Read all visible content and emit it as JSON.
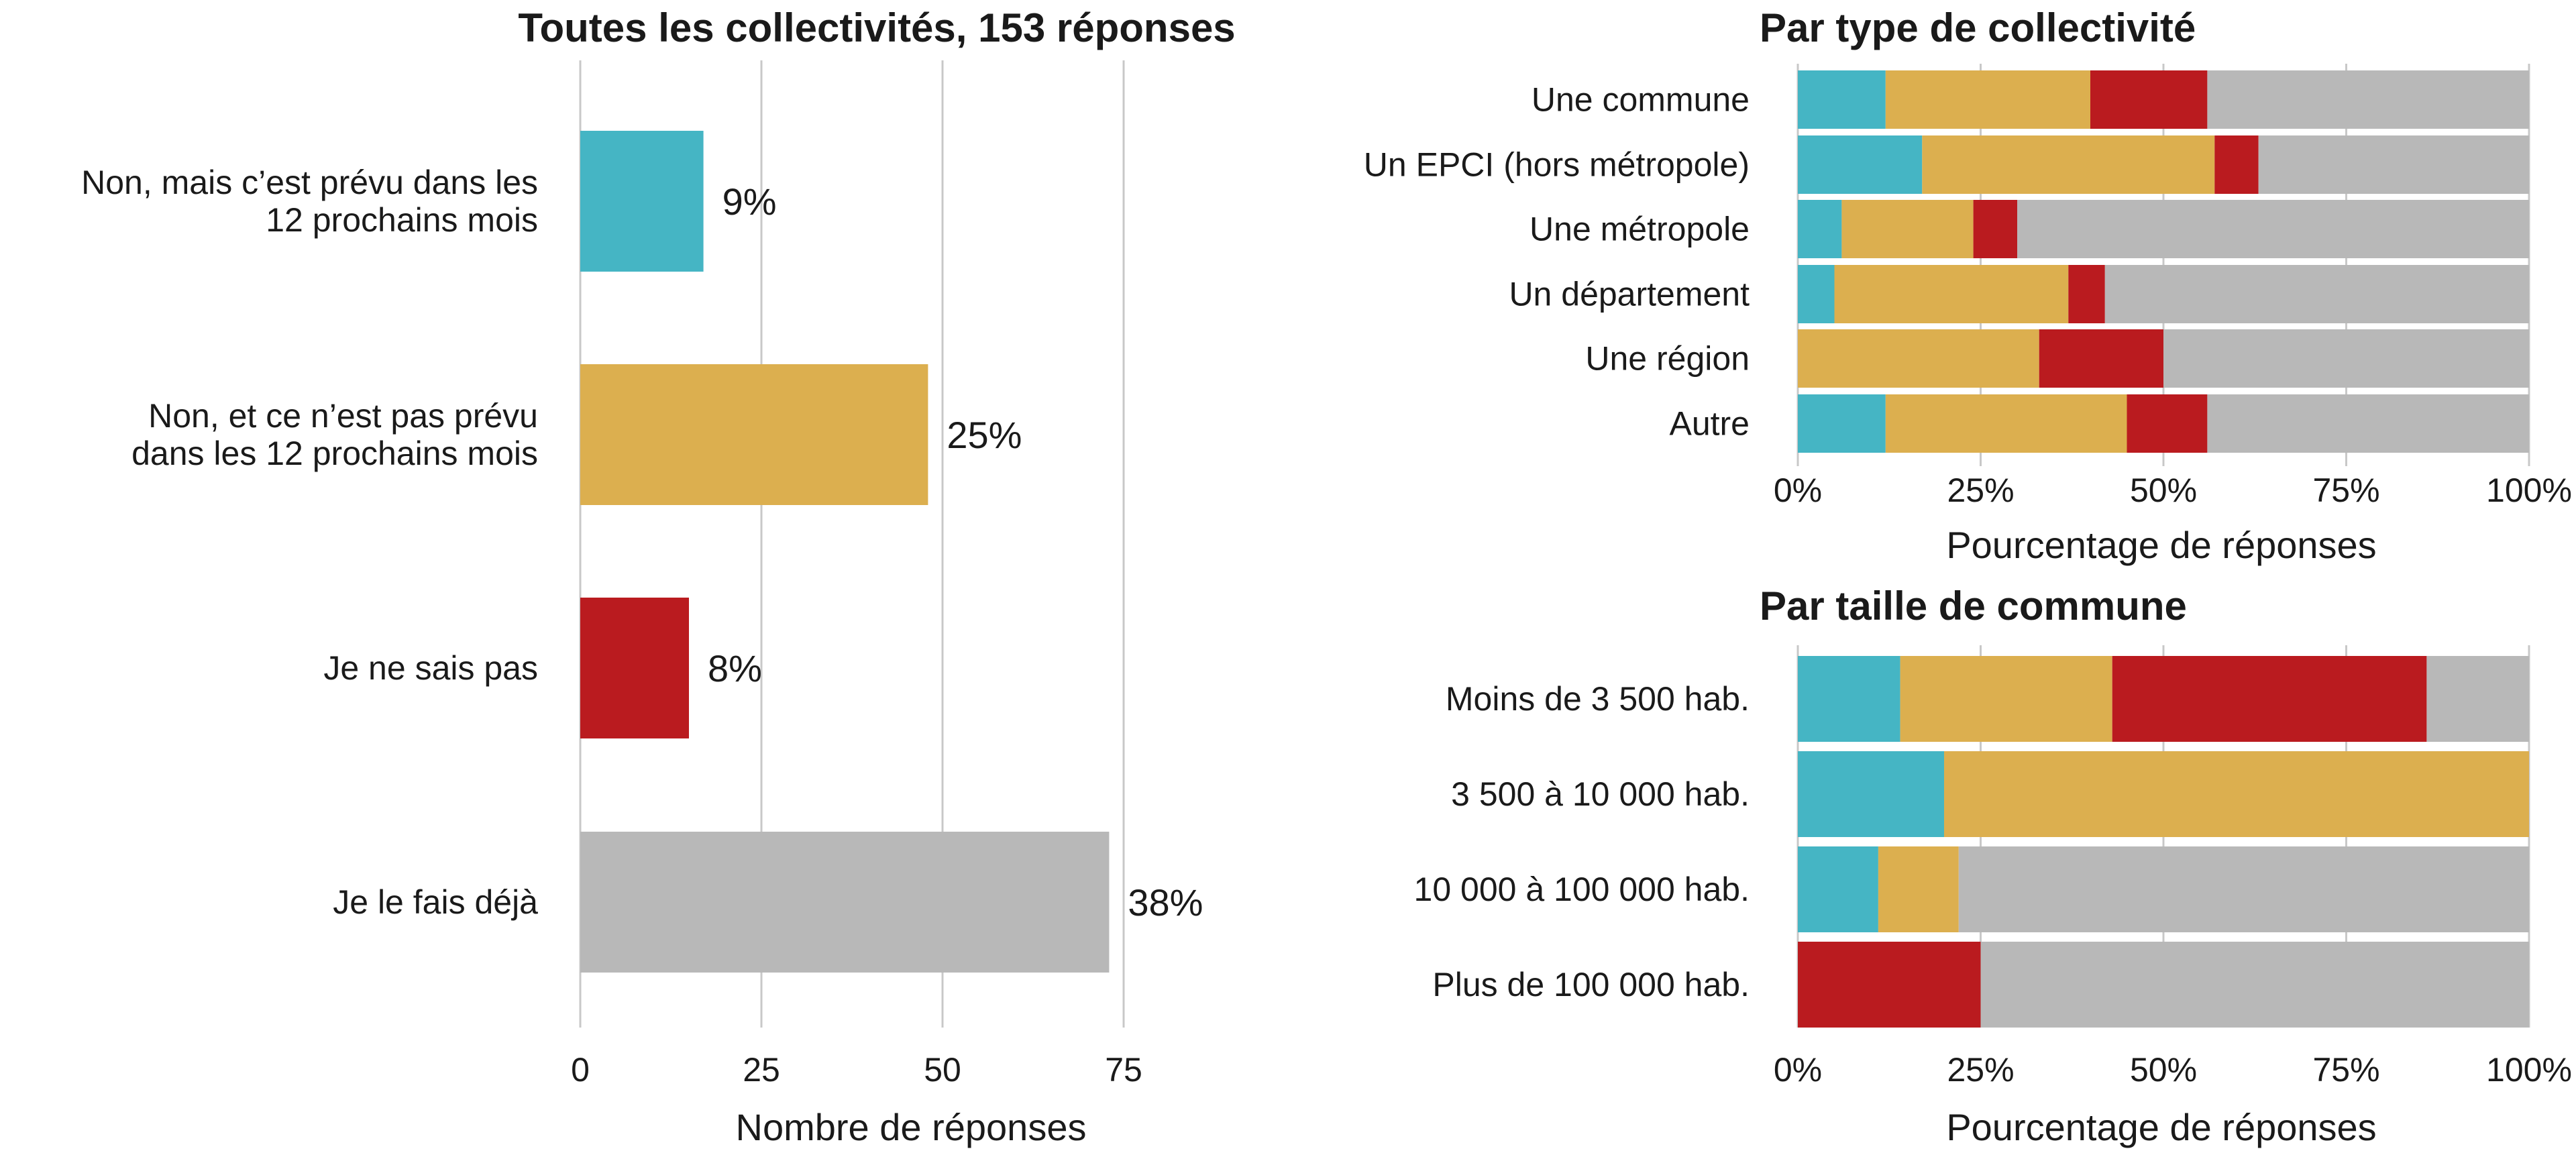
{
  "chart_data": [
    {
      "type": "bar",
      "orientation": "horizontal",
      "title": "Toutes les collectivités, 153 réponses",
      "xlabel": "Nombre de réponses",
      "categories": [
        [
          "Non, mais c’est prévu dans les",
          "12 prochains mois"
        ],
        [
          "Non, et ce n’est pas prévu",
          "dans les 12 prochains mois"
        ],
        [
          "Je ne sais pas"
        ],
        [
          "Je le fais déjà"
        ]
      ],
      "values": [
        17,
        48,
        15,
        73
      ],
      "data_labels": [
        "9%",
        "25%",
        "8%",
        "38%"
      ],
      "colors": [
        "#45b5c4",
        "#dcaf4f",
        "#ba1b1f",
        "#b8b8b8"
      ],
      "xlim": [
        0,
        80
      ],
      "xticks": [
        0,
        25,
        50,
        75
      ],
      "xtick_labels": [
        "0",
        "25",
        "50",
        "75"
      ],
      "grid": true
    },
    {
      "type": "bar",
      "orientation": "horizontal",
      "stacked": true,
      "title": "Par type de collectivité",
      "xlabel": "Pourcentage de réponses",
      "categories": [
        "Une commune",
        "Un EPCI (hors métropole)",
        "Une métropole",
        "Un département",
        "Une région",
        "Autre"
      ],
      "series": [
        {
          "values": [
            12,
            17,
            6,
            5,
            0,
            12
          ],
          "color": "#45b5c4"
        },
        {
          "values": [
            28,
            40,
            18,
            32,
            33,
            33
          ],
          "color": "#dcaf4f"
        },
        {
          "values": [
            16,
            6,
            6,
            5,
            17,
            11
          ],
          "color": "#ba1b1f"
        },
        {
          "values": [
            44,
            37,
            70,
            58,
            50,
            44
          ],
          "color": "#b8b8b8"
        }
      ],
      "xlim": [
        0,
        100
      ],
      "xticks": [
        0,
        25,
        50,
        75,
        100
      ],
      "xtick_labels": [
        "0%",
        "25%",
        "50%",
        "75%",
        "100%"
      ],
      "grid": true
    },
    {
      "type": "bar",
      "orientation": "horizontal",
      "stacked": true,
      "title": "Par taille de commune",
      "xlabel": "Pourcentage de réponses",
      "categories": [
        "Moins de 3 500 hab.",
        "3 500 à 10 000 hab.",
        "10 000 à 100 000 hab.",
        "Plus de 100 000 hab."
      ],
      "series": [
        {
          "values": [
            14,
            20,
            11,
            0
          ],
          "color": "#45b5c4"
        },
        {
          "values": [
            29,
            80,
            11,
            0
          ],
          "color": "#dcaf4f"
        },
        {
          "values": [
            43,
            0,
            0,
            25
          ],
          "color": "#ba1b1f"
        },
        {
          "values": [
            14,
            0,
            78,
            75
          ],
          "color": "#b8b8b8"
        }
      ],
      "xlim": [
        0,
        100
      ],
      "xticks": [
        0,
        25,
        50,
        75,
        100
      ],
      "xtick_labels": [
        "0%",
        "25%",
        "50%",
        "75%",
        "100%"
      ],
      "grid": true
    }
  ]
}
